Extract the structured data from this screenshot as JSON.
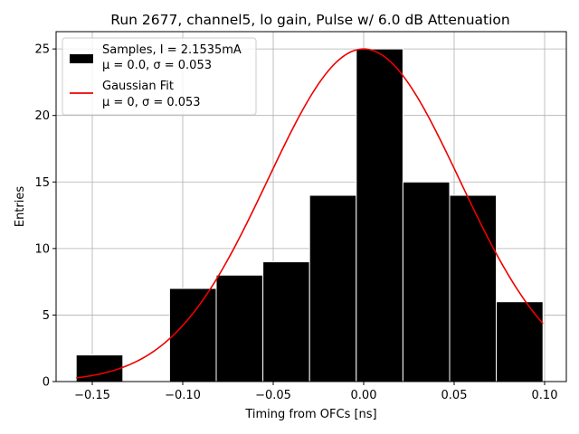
{
  "chart_data": {
    "type": "histogram",
    "title": "Run 2677, channel5, lo gain, Pulse w/ 6.0 dB Attenuation",
    "xlabel": "Timing from OFCs [ns]",
    "ylabel": "Entries",
    "xlim": [
      -0.17,
      0.112
    ],
    "ylim": [
      0,
      26.3
    ],
    "xticks": [
      -0.15,
      -0.1,
      -0.05,
      0.0,
      0.05,
      0.1
    ],
    "xtick_labels": [
      "−0.15",
      "−0.10",
      "−0.05",
      "0.00",
      "0.05",
      "0.10"
    ],
    "yticks": [
      0,
      5,
      10,
      15,
      20,
      25
    ],
    "ytick_labels": [
      "0",
      "5",
      "10",
      "15",
      "20",
      "25"
    ],
    "grid": true,
    "bins": [
      {
        "x0": -0.1589,
        "x1": -0.1331,
        "count": 2
      },
      {
        "x0": -0.1331,
        "x1": -0.1073,
        "count": 0
      },
      {
        "x0": -0.1073,
        "x1": -0.0815,
        "count": 7
      },
      {
        "x0": -0.0815,
        "x1": -0.0557,
        "count": 8
      },
      {
        "x0": -0.0557,
        "x1": -0.0299,
        "count": 9
      },
      {
        "x0": -0.0299,
        "x1": -0.0041,
        "count": 14
      },
      {
        "x0": -0.0041,
        "x1": 0.0217,
        "count": 25
      },
      {
        "x0": 0.0217,
        "x1": 0.0475,
        "count": 15
      },
      {
        "x0": 0.0475,
        "x1": 0.0733,
        "count": 14
      },
      {
        "x0": 0.0733,
        "x1": 0.0991,
        "count": 6
      }
    ],
    "fit": {
      "name": "Gaussian Fit",
      "mu": 0.0,
      "sigma": 0.053,
      "amplitude": 25,
      "x_range": [
        -0.1589,
        0.0991
      ],
      "color": "#ee0000"
    },
    "bar_color": "#000000",
    "bar_edge_color": "#ffffff",
    "legend": {
      "placement": "upper-left",
      "entries": [
        {
          "line1": "Samples, I = 2.1535mA",
          "line2": "μ = 0.0, σ = 0.053",
          "marker": "patch",
          "color": "#000000"
        },
        {
          "line1": "Gaussian Fit",
          "line2": "μ = 0, σ = 0.053",
          "marker": "line",
          "color": "#ee0000"
        }
      ]
    }
  }
}
